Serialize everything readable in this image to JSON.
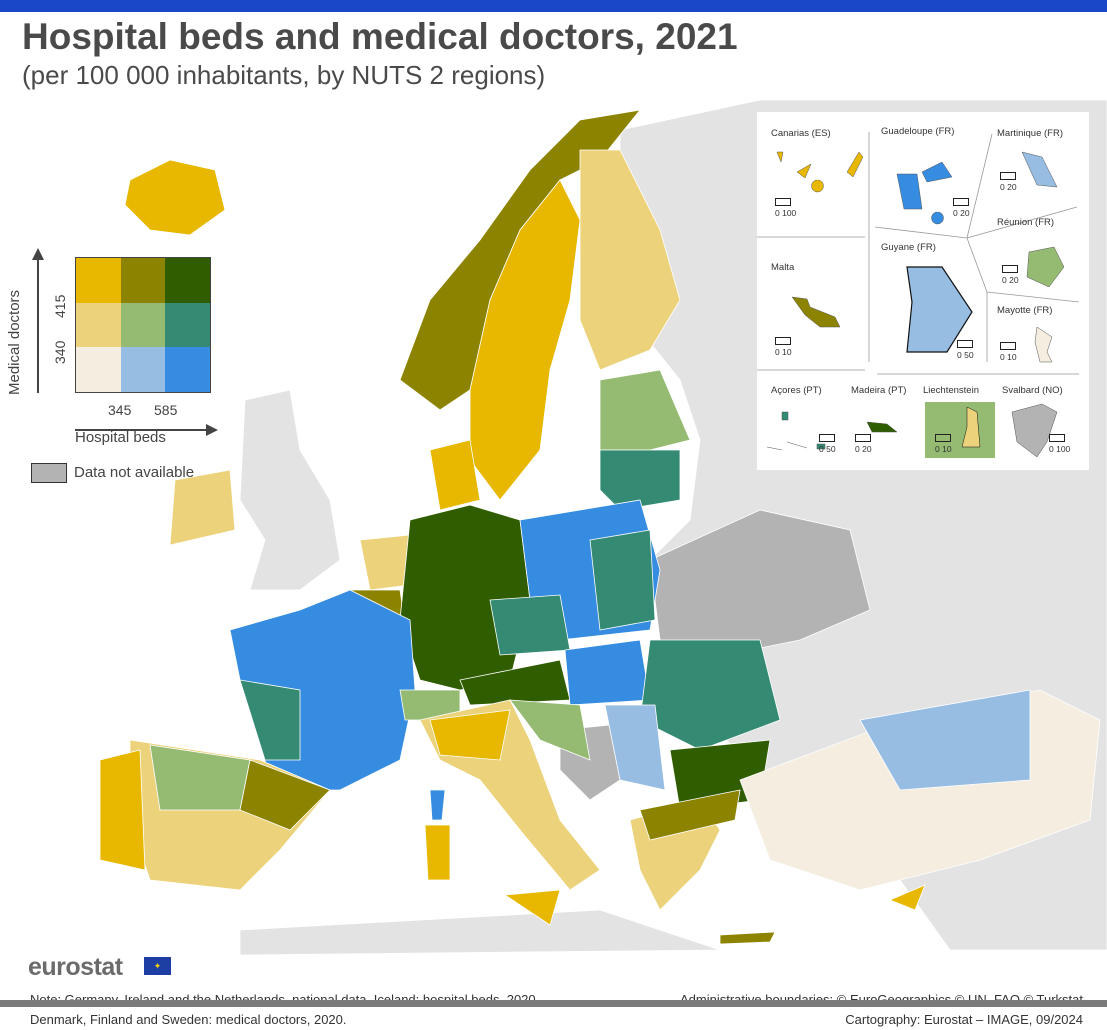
{
  "header": {
    "title": "Hospital beds and medical doctors, 2021",
    "subtitle": "(per 100 000 inhabitants, by NUTS 2 regions)"
  },
  "legend": {
    "y_axis_label": "Medical doctors",
    "y_ticks": [
      "415",
      "340"
    ],
    "x_axis_label": "Hospital beds",
    "x_ticks": [
      "345",
      "585"
    ],
    "colors": [
      [
        "#e8b800",
        "#8c8400",
        "#2f5d00"
      ],
      [
        "#ecd27a",
        "#95bb73",
        "#348a72"
      ],
      [
        "#f4ede0",
        "#97bde3",
        "#358ce0"
      ]
    ],
    "not_available_label": "Data not available",
    "not_available_color": "#b3b3b3"
  },
  "insets": [
    {
      "name": "Canarias (ES)",
      "scale": "0    100"
    },
    {
      "name": "Guadeloupe (FR)",
      "scale": "0  20"
    },
    {
      "name": "Martinique (FR)",
      "scale": "0  20"
    },
    {
      "name": "Réunion (FR)",
      "scale": "0  20"
    },
    {
      "name": "Malta",
      "scale": "0   10"
    },
    {
      "name": "Guyane (FR)",
      "scale": "0 50"
    },
    {
      "name": "Mayotte (FR)",
      "scale": "0  10"
    },
    {
      "name": "Açores (PT)",
      "scale": "0  50"
    },
    {
      "name": "Madeira (PT)",
      "scale": "0 20"
    },
    {
      "name": "Liechtenstein",
      "scale": "0   10"
    },
    {
      "name": "Svalbard (NO)",
      "scale": "0 100"
    }
  ],
  "footer": {
    "logo": "eurostat",
    "note": "Note: Germany, Ireland and the Netherlands, national data. Iceland: hospital beds, 2020. Denmark, Finland and Sweden: medical doctors, 2020.",
    "credit_1": "Administrative boundaries: © EuroGeographics © UN–FAO © Turkstat",
    "credit_2": "Cartography: Eurostat – IMAGE, 09/2024"
  }
}
